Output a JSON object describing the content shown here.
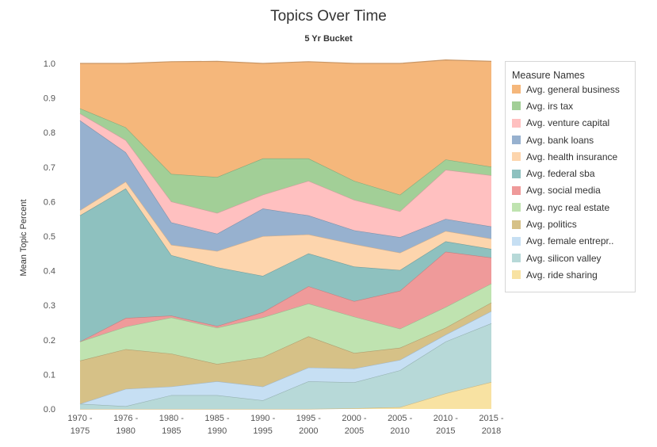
{
  "chart_data": {
    "type": "area",
    "title": "Topics Over Time",
    "xlabel": "5 Yr Bucket",
    "ylabel": "Mean Topic Percent",
    "ylim": [
      0,
      1.0
    ],
    "y_ticks": [
      "0.0",
      "0.1",
      "0.2",
      "0.3",
      "0.4",
      "0.5",
      "0.6",
      "0.7",
      "0.8",
      "0.9",
      "1.0"
    ],
    "grid": false,
    "stacked": true,
    "legend_title": "Measure Names",
    "legend_position": "right",
    "categories": [
      [
        "1970 -",
        "1975"
      ],
      [
        "1976 -",
        "1980"
      ],
      [
        "1980 -",
        "1985"
      ],
      [
        "1985 -",
        "1990"
      ],
      [
        "1990 -",
        "1995"
      ],
      [
        "1995 -",
        "2000"
      ],
      [
        "2000 -",
        "2005"
      ],
      [
        "2005 -",
        "2010"
      ],
      [
        "2010 -",
        "2015"
      ],
      [
        "2015 -",
        "2018"
      ]
    ],
    "series": [
      {
        "name": "Avg. general business",
        "color": "#f5b77b",
        "values": [
          0.13,
          0.185,
          0.325,
          0.335,
          0.275,
          0.28,
          0.34,
          0.38,
          0.288,
          0.305
        ]
      },
      {
        "name": "Avg. irs tax",
        "color": "#a2cf97",
        "values": [
          0.015,
          0.037,
          0.08,
          0.104,
          0.105,
          0.065,
          0.055,
          0.048,
          0.03,
          0.025
        ]
      },
      {
        "name": "Avg. venture capital",
        "color": "#ffc0c0",
        "values": [
          0.02,
          0.035,
          0.06,
          0.06,
          0.04,
          0.1,
          0.088,
          0.075,
          0.142,
          0.148
        ]
      },
      {
        "name": "Avg. bank loans",
        "color": "#97b1cf",
        "values": [
          0.26,
          0.085,
          0.065,
          0.05,
          0.08,
          0.055,
          0.04,
          0.045,
          0.035,
          0.035
        ]
      },
      {
        "name": "Avg. health insurance",
        "color": "#fdd5ad",
        "values": [
          0.015,
          0.02,
          0.03,
          0.047,
          0.115,
          0.055,
          0.065,
          0.05,
          0.03,
          0.03
        ]
      },
      {
        "name": "Avg. federal sba",
        "color": "#8ec1bf",
        "values": [
          0.365,
          0.375,
          0.175,
          0.17,
          0.105,
          0.095,
          0.1,
          0.06,
          0.03,
          0.025
        ]
      },
      {
        "name": "Avg. social media",
        "color": "#ef9a9a",
        "values": [
          0.0,
          0.025,
          0.005,
          0.005,
          0.015,
          0.05,
          0.045,
          0.11,
          0.16,
          0.075
        ]
      },
      {
        "name": "Avg. nyc real estate",
        "color": "#bfe3b0",
        "values": [
          0.055,
          0.065,
          0.105,
          0.105,
          0.115,
          0.095,
          0.105,
          0.055,
          0.06,
          0.055
        ]
      },
      {
        "name": "Avg. politics",
        "color": "#d6c187",
        "values": [
          0.125,
          0.115,
          0.095,
          0.05,
          0.085,
          0.09,
          0.045,
          0.035,
          0.02,
          0.025
        ]
      },
      {
        "name": "Avg. female entrepr..",
        "color": "#c6dff3",
        "values": [
          0.0,
          0.05,
          0.025,
          0.04,
          0.04,
          0.04,
          0.04,
          0.03,
          0.02,
          0.035
        ]
      },
      {
        "name": "Avg. silicon valley",
        "color": "#b7d9d8",
        "values": [
          0.015,
          0.008,
          0.04,
          0.04,
          0.025,
          0.08,
          0.075,
          0.107,
          0.15,
          0.17
        ]
      },
      {
        "name": "Avg. ride sharing",
        "color": "#f8e2a2",
        "values": [
          0.0,
          0.0,
          0.0,
          0.0,
          0.0,
          0.0,
          0.002,
          0.005,
          0.045,
          0.078
        ]
      }
    ]
  }
}
